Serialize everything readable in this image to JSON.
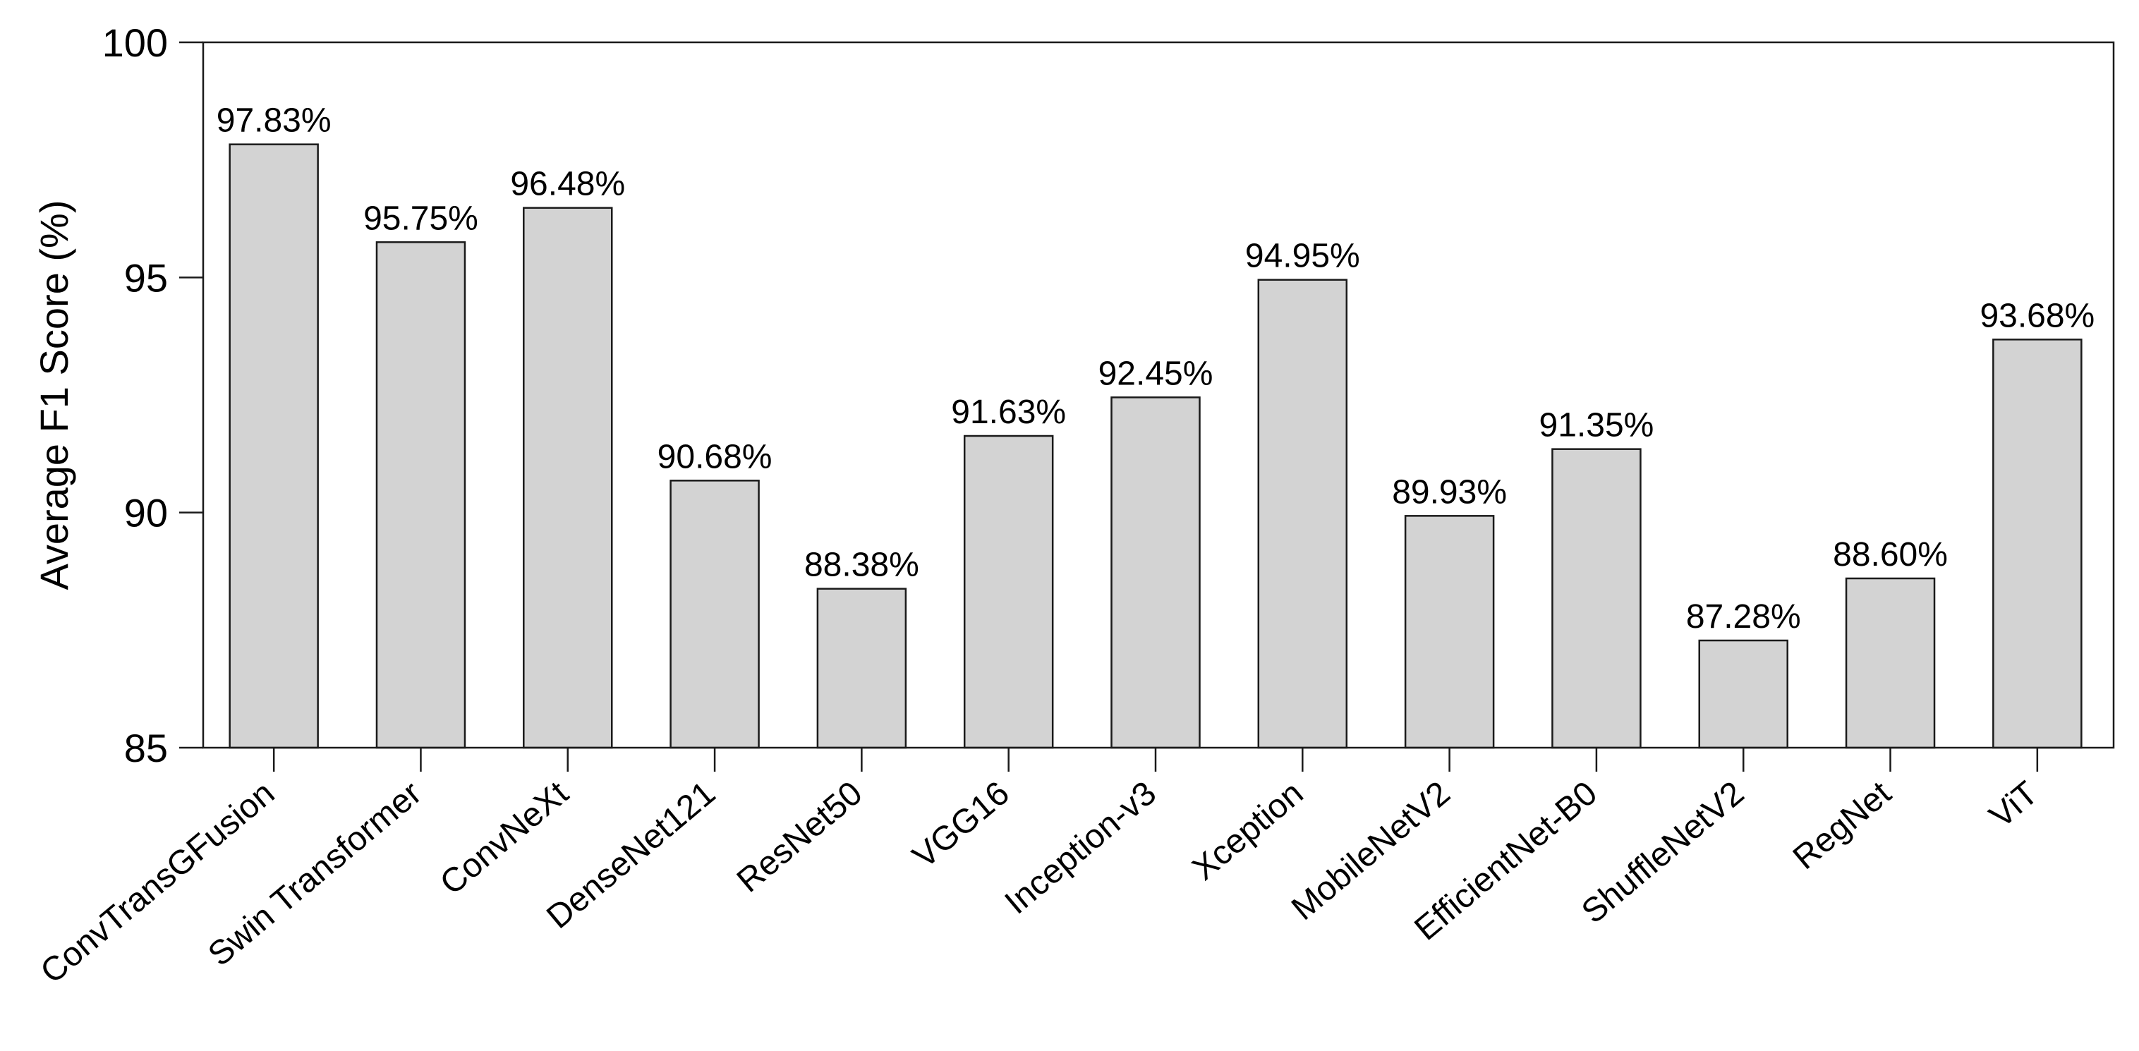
{
  "chart_data": {
    "type": "bar",
    "title": "",
    "xlabel": "",
    "ylabel": "Average F1 Score (%)",
    "ylim": [
      85,
      100
    ],
    "yticks": [
      85,
      90,
      95,
      100
    ],
    "grid": false,
    "bar_color": "#d3d3d3",
    "bar_edge_color": "#1a1a1a",
    "categories": [
      "ConvTransGFusion",
      "Swin Transformer",
      "ConvNeXt",
      "DenseNet121",
      "ResNet50",
      "VGG16",
      "Inception-v3",
      "Xception",
      "MobileNetV2",
      "EfficientNet-B0",
      "ShuffleNetV2",
      "RegNet",
      "ViT"
    ],
    "values": [
      97.83,
      95.75,
      96.48,
      90.68,
      88.38,
      91.63,
      92.45,
      94.95,
      89.93,
      91.35,
      87.28,
      88.6,
      93.68
    ],
    "data_labels": [
      "97.83%",
      "95.75%",
      "96.48%",
      "90.68%",
      "88.38%",
      "91.63%",
      "92.45%",
      "94.95%",
      "89.93%",
      "91.35%",
      "87.28%",
      "88.60%",
      "93.68%"
    ]
  }
}
